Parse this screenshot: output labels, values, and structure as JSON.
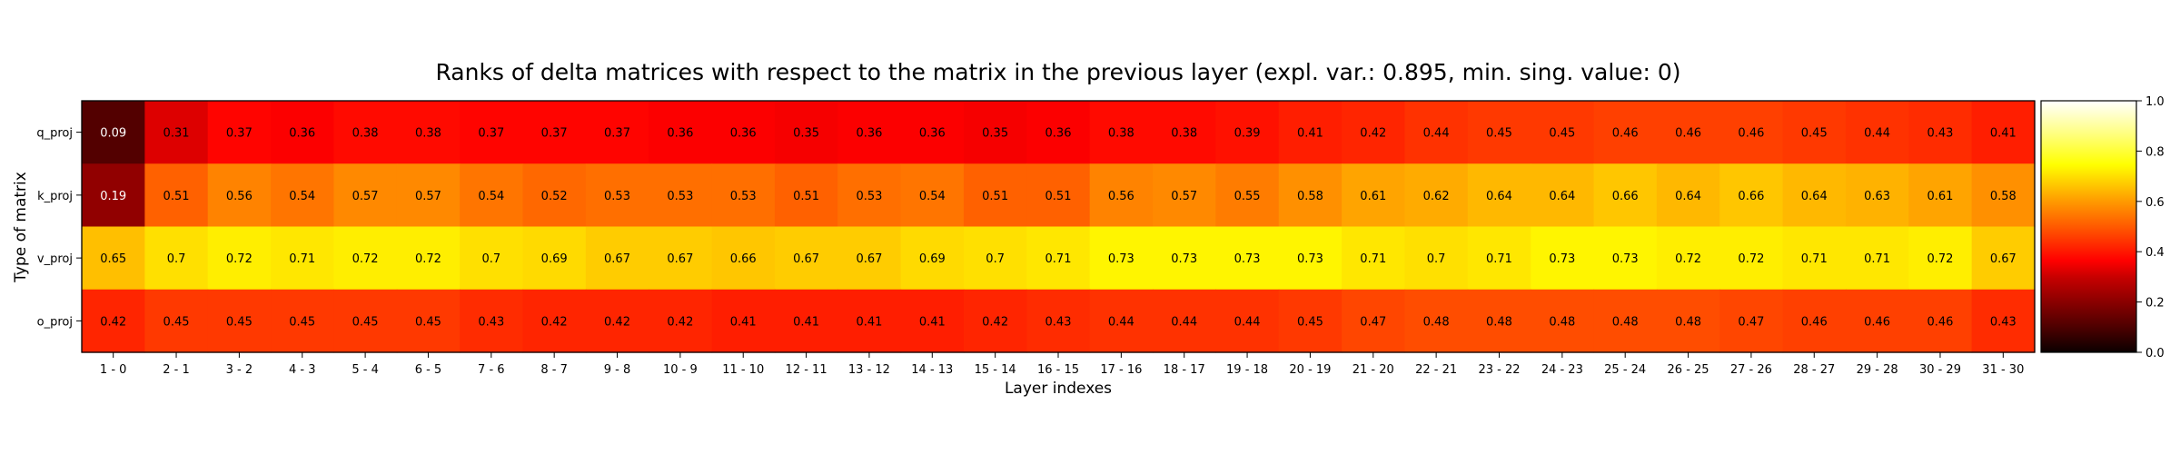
{
  "chart_data": {
    "type": "heatmap",
    "title": "Ranks of delta matrices with respect to the matrix in the previous layer (expl. var.: 0.895, min. sing. value: 0)",
    "xlabel": "Layer indexes",
    "ylabel": "Type of matrix",
    "x_categories": [
      "1 - 0",
      "2 - 1",
      "3 - 2",
      "4 - 3",
      "5 - 4",
      "6 - 5",
      "7 - 6",
      "8 - 7",
      "9 - 8",
      "10 - 9",
      "11 - 10",
      "12 - 11",
      "13 - 12",
      "14 - 13",
      "15 - 14",
      "16 - 15",
      "17 - 16",
      "18 - 17",
      "19 - 18",
      "20 - 19",
      "21 - 20",
      "22 - 21",
      "23 - 22",
      "24 - 23",
      "25 - 24",
      "26 - 25",
      "27 - 26",
      "28 - 27",
      "29 - 28",
      "30 - 29",
      "31 - 30"
    ],
    "y_categories": [
      "q_proj",
      "k_proj",
      "v_proj",
      "o_proj"
    ],
    "values": [
      [
        0.09,
        0.31,
        0.37,
        0.36,
        0.38,
        0.38,
        0.37,
        0.37,
        0.37,
        0.36,
        0.36,
        0.35,
        0.36,
        0.36,
        0.35,
        0.36,
        0.38,
        0.38,
        0.39,
        0.41,
        0.42,
        0.44,
        0.45,
        0.45,
        0.46,
        0.46,
        0.46,
        0.45,
        0.44,
        0.43,
        0.41
      ],
      [
        0.19,
        0.51,
        0.56,
        0.54,
        0.57,
        0.57,
        0.54,
        0.52,
        0.53,
        0.53,
        0.53,
        0.51,
        0.53,
        0.54,
        0.51,
        0.51,
        0.56,
        0.57,
        0.55,
        0.58,
        0.61,
        0.62,
        0.64,
        0.64,
        0.66,
        0.64,
        0.66,
        0.64,
        0.63,
        0.61,
        0.58
      ],
      [
        0.65,
        0.7,
        0.72,
        0.71,
        0.72,
        0.72,
        0.7,
        0.69,
        0.67,
        0.67,
        0.66,
        0.67,
        0.67,
        0.69,
        0.7,
        0.71,
        0.73,
        0.73,
        0.73,
        0.73,
        0.71,
        0.7,
        0.71,
        0.73,
        0.73,
        0.72,
        0.72,
        0.71,
        0.71,
        0.72,
        0.67
      ],
      [
        0.42,
        0.45,
        0.45,
        0.45,
        0.45,
        0.45,
        0.43,
        0.42,
        0.42,
        0.42,
        0.41,
        0.41,
        0.41,
        0.41,
        0.42,
        0.43,
        0.44,
        0.44,
        0.44,
        0.45,
        0.47,
        0.48,
        0.48,
        0.48,
        0.48,
        0.48,
        0.47,
        0.46,
        0.46,
        0.46,
        0.43
      ]
    ],
    "colormap": "hot",
    "vmin": 0.0,
    "vmax": 1.0,
    "colorbar_ticks": [
      "0.0",
      "0.2",
      "0.4",
      "0.6",
      "0.8",
      "1.0"
    ],
    "grid": false,
    "legend": "colorbar right"
  }
}
